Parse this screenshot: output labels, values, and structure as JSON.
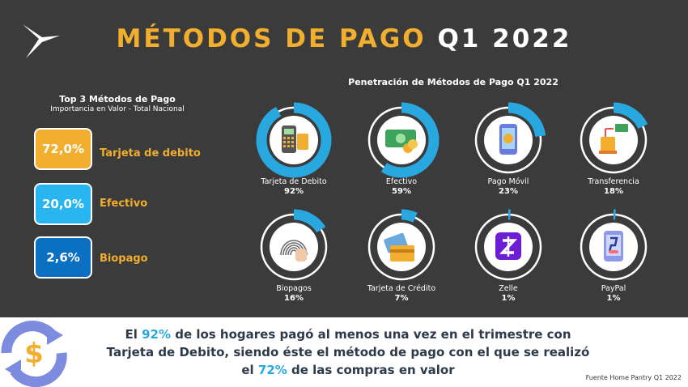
{
  "header": {
    "title_main": "MÉTODOS DE PAGO",
    "title_period": "Q1 2022"
  },
  "top3": {
    "heading": "Top 3 Métodos de Pago",
    "subheading": "Importancia en Valor - Total Nacional",
    "items": [
      {
        "value": "72,0%",
        "label": "Tarjeta de debito",
        "color": "#f2ae2e",
        "label_color": "#f2ae2e"
      },
      {
        "value": "20,0%",
        "label": "Efectivo",
        "color": "#29b6f0",
        "label_color": "#f2ae2e"
      },
      {
        "value": "2,6%",
        "label": "Biopago",
        "color": "#0b70c1",
        "label_color": "#f2ae2e"
      }
    ]
  },
  "chart_data": {
    "type": "pie",
    "title": "Penetración de Métodos de Pago Q1 2022",
    "series": [
      {
        "name": "Tarjeta de Debito",
        "value": 92,
        "label": "92%",
        "icon": "pos-terminal-icon"
      },
      {
        "name": "Efectivo",
        "value": 59,
        "label": "59%",
        "icon": "cash-icon"
      },
      {
        "name": "Pago Móvil",
        "value": 23,
        "label": "23%",
        "icon": "mobile-payment-icon"
      },
      {
        "name": "Transferencia",
        "value": 18,
        "label": "18%",
        "icon": "transfer-icon"
      },
      {
        "name": "Biopagos",
        "value": 16,
        "label": "16%",
        "icon": "fingerprint-icon"
      },
      {
        "name": "Tarjeta de Crédito",
        "value": 7,
        "label": "7%",
        "icon": "credit-card-icon"
      },
      {
        "name": "Zelle",
        "value": 1,
        "label": "1%",
        "icon": "zelle-icon"
      },
      {
        "name": "PayPal",
        "value": 1,
        "label": "1%",
        "icon": "paypal-icon"
      }
    ],
    "ring_color": "#29a8e0",
    "track_color": "#ffffff"
  },
  "footer": {
    "message_pre": "El ",
    "message_hl1": "92%",
    "message_mid1": " de los hogares pagó al menos una vez en el trimestre con",
    "message_line2": "Tarjeta de Debito, siendo éste el método de pago con el que se realizó",
    "message_pre3": "el ",
    "message_hl2": "72%",
    "message_post3": " de las compras en valor",
    "source": "Fuente Home Pantry Q1 2022"
  }
}
